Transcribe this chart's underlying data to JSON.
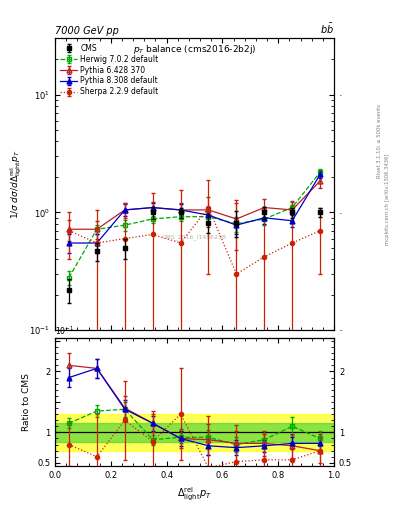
{
  "x_cms": [
    0.05,
    0.15,
    0.25,
    0.35,
    0.45,
    0.55,
    0.65,
    0.75,
    0.85,
    0.95
  ],
  "y_cms": [
    0.22,
    0.47,
    0.5,
    1.0,
    1.0,
    0.82,
    0.82,
    1.0,
    1.0,
    1.0
  ],
  "ye_cms": [
    0.05,
    0.08,
    0.1,
    0.12,
    0.1,
    0.15,
    0.2,
    0.12,
    0.1,
    0.08
  ],
  "x_hw": [
    0.05,
    0.15,
    0.25,
    0.35,
    0.45,
    0.55,
    0.65,
    0.75,
    0.85,
    0.95
  ],
  "y_hw": [
    0.28,
    0.72,
    0.78,
    0.88,
    0.92,
    0.92,
    0.8,
    0.88,
    1.1,
    2.2
  ],
  "ye_hw": [
    0.04,
    0.06,
    0.08,
    0.06,
    0.08,
    0.1,
    0.12,
    0.1,
    0.12,
    0.15
  ],
  "x_p6": [
    0.05,
    0.15,
    0.25,
    0.35,
    0.45,
    0.55,
    0.65,
    0.75,
    0.85,
    0.95
  ],
  "y_p6": [
    0.72,
    0.72,
    1.05,
    1.1,
    1.05,
    1.05,
    0.88,
    1.1,
    1.05,
    1.85
  ],
  "ye_p6": [
    0.15,
    0.12,
    0.15,
    0.12,
    0.15,
    0.3,
    0.4,
    0.2,
    0.2,
    0.25
  ],
  "x_p8": [
    0.05,
    0.15,
    0.25,
    0.35,
    0.45,
    0.55,
    0.65,
    0.75,
    0.85,
    0.95
  ],
  "y_p8": [
    0.55,
    0.55,
    1.05,
    1.1,
    1.05,
    0.95,
    0.78,
    0.9,
    0.85,
    2.1
  ],
  "ye_p8": [
    0.1,
    0.1,
    0.12,
    0.1,
    0.12,
    0.15,
    0.12,
    0.1,
    0.1,
    0.15
  ],
  "x_sh": [
    0.05,
    0.15,
    0.25,
    0.35,
    0.45,
    0.55,
    0.65,
    0.75,
    0.85,
    0.95
  ],
  "y_sh": [
    0.7,
    0.55,
    0.6,
    0.65,
    0.55,
    1.1,
    0.3,
    0.42,
    0.55,
    0.7
  ],
  "ye_sh": [
    0.3,
    0.5,
    0.6,
    0.8,
    1.0,
    0.8,
    0.9,
    0.7,
    0.6,
    0.4
  ],
  "r_hw": [
    1.15,
    1.35,
    1.38,
    0.88,
    0.92,
    0.92,
    0.8,
    0.88,
    1.1,
    0.9
  ],
  "re_hw": [
    0.08,
    0.1,
    0.12,
    0.08,
    0.1,
    0.12,
    0.12,
    0.1,
    0.15,
    0.12
  ],
  "r_p6": [
    2.1,
    2.05,
    1.4,
    1.15,
    0.9,
    0.88,
    0.82,
    0.82,
    0.78,
    0.7
  ],
  "re_p6": [
    0.2,
    0.15,
    0.2,
    0.15,
    0.15,
    0.25,
    0.3,
    0.2,
    0.2,
    0.2
  ],
  "r_p8": [
    1.9,
    2.05,
    1.38,
    1.15,
    0.9,
    0.78,
    0.75,
    0.78,
    0.82,
    0.82
  ],
  "re_p8": [
    0.15,
    0.15,
    0.15,
    0.12,
    0.12,
    0.15,
    0.12,
    0.1,
    0.1,
    0.12
  ],
  "r_sh": [
    0.8,
    0.6,
    1.2,
    0.85,
    1.3,
    0.42,
    0.52,
    0.55,
    0.55,
    0.7
  ],
  "re_sh": [
    0.35,
    0.7,
    0.65,
    0.5,
    0.75,
    0.85,
    0.5,
    0.42,
    0.3,
    0.28
  ],
  "col_cms": "#000000",
  "col_hw": "#00aa00",
  "col_p6": "#bb2222",
  "col_p8": "#0000cc",
  "col_sh": "#cc2200",
  "band_yellow": [
    0.7,
    1.3
  ],
  "band_green": [
    0.85,
    1.15
  ],
  "ylim_main": [
    0.1,
    30
  ],
  "ylim_ratio": [
    0.45,
    2.55
  ],
  "xlim": [
    0.0,
    1.0
  ]
}
